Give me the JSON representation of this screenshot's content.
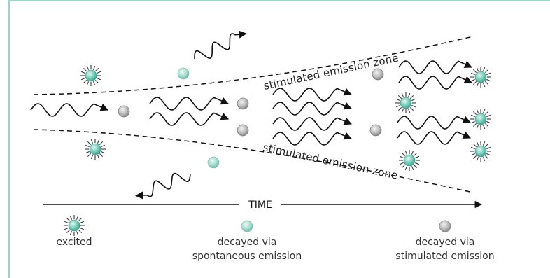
{
  "diagram": {
    "upper_zone_label": "stimulated emission zone",
    "lower_zone_label": "stimulated emission zone",
    "time_label": "TIME",
    "legend": {
      "excited": "excited",
      "spontaneous_line1": "decayed via",
      "spontaneous_line2": "spontaneous emission",
      "stimulated_line1": "decayed via",
      "stimulated_line2": "stimulated emission"
    }
  },
  "colors": {
    "frame_border": "#9fd3c7",
    "excited_atom": "#5fc4b0",
    "spontaneous_atom": "#a8dccf",
    "stimulated_atom": "#b5b5b5",
    "wave": "#111111"
  }
}
